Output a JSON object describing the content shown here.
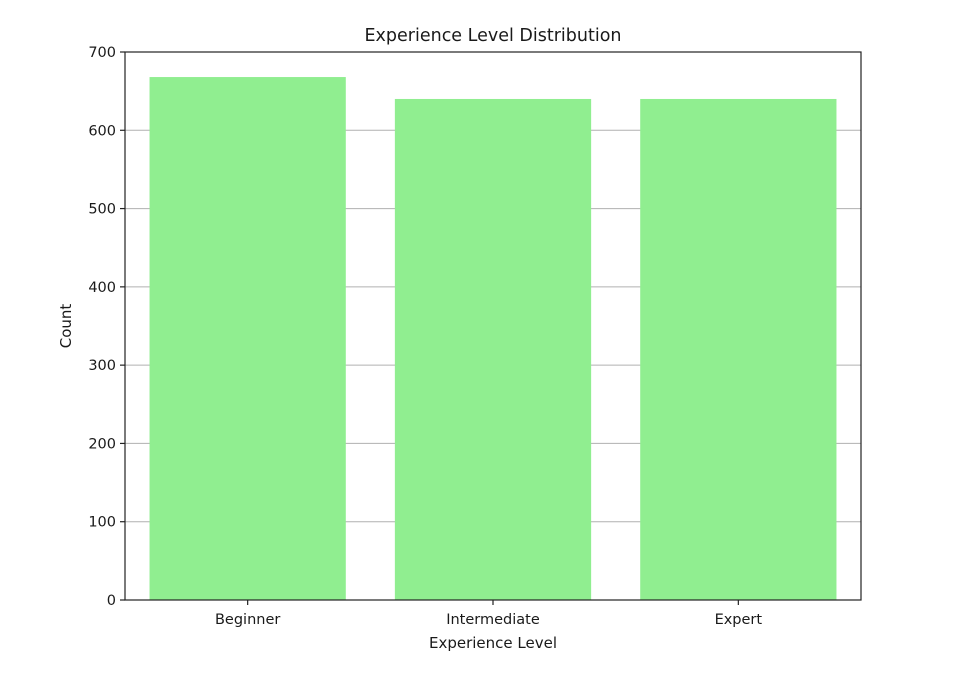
{
  "chart_data": {
    "type": "bar",
    "title": "Experience Level Distribution",
    "xlabel": "Experience Level",
    "ylabel": "Count",
    "categories": [
      "Beginner",
      "Intermediate",
      "Expert"
    ],
    "values": [
      668,
      640,
      640
    ],
    "ylim": [
      0,
      700
    ],
    "yticks": [
      0,
      100,
      200,
      300,
      400,
      500,
      600,
      700
    ],
    "grid": "y",
    "legend": "none",
    "bar_color": "#90ee90"
  }
}
